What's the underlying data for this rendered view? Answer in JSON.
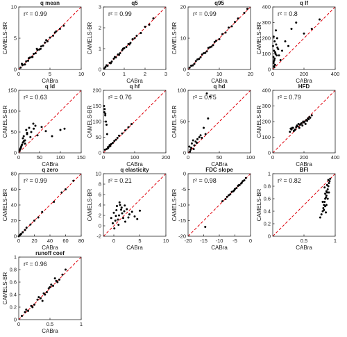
{
  "figure": {
    "background": "#ffffff"
  },
  "style": {
    "point_color": "#000000",
    "line_color": "#e0000b",
    "axis_color": "#262626"
  },
  "chart_data": [
    {
      "type": "scatter",
      "title": "q mean",
      "xlabel": "CABra",
      "ylabel": "CAMELS-BR",
      "r2": "r² = 0.99",
      "xlim": [
        0,
        10
      ],
      "ylim": [
        0,
        10
      ],
      "xticks": [
        0,
        5,
        10
      ],
      "yticks": [
        0,
        5,
        10
      ],
      "xticklabels": [
        "0",
        "5",
        "10"
      ],
      "yticklabels": [
        "0",
        "5",
        "10"
      ],
      "x": [
        0.3,
        0.6,
        0.9,
        1.2,
        1.5,
        1.8,
        2.1,
        2.4,
        2.7,
        3.0,
        3.3,
        3.6,
        3.9,
        4.2,
        4.6,
        5.0,
        5.5,
        6.0,
        6.6,
        7.2,
        0.5,
        1.0,
        1.6,
        2.2,
        2.9,
        3.5,
        4.4,
        5.8
      ],
      "y": [
        0.3,
        0.7,
        0.8,
        1.3,
        1.4,
        1.9,
        2.0,
        2.5,
        2.6,
        3.1,
        3.2,
        3.7,
        3.8,
        4.3,
        4.5,
        5.1,
        5.4,
        6.1,
        6.5,
        7.0,
        0.9,
        0.8,
        1.8,
        2.0,
        3.3,
        3.3,
        4.7,
        5.9
      ]
    },
    {
      "type": "scatter",
      "title": "q5",
      "xlabel": "CABra",
      "ylabel": "CAMELS-BR",
      "r2": "r² = 0.99",
      "xlim": [
        0,
        3
      ],
      "ylim": [
        0,
        3
      ],
      "xticks": [
        0,
        1,
        2,
        3
      ],
      "yticks": [
        0,
        1,
        2,
        3
      ],
      "xticklabels": [
        "0",
        "1",
        "2",
        "3"
      ],
      "yticklabels": [
        "0",
        "1",
        "2",
        "3"
      ],
      "x": [
        0.05,
        0.1,
        0.2,
        0.3,
        0.4,
        0.5,
        0.6,
        0.7,
        0.8,
        0.9,
        1.0,
        1.1,
        1.2,
        1.3,
        1.4,
        1.5,
        1.6,
        1.8,
        2.0,
        2.2,
        2.4,
        0.15,
        0.35,
        0.55,
        0.75,
        0.95,
        1.25
      ],
      "y": [
        0.05,
        0.12,
        0.18,
        0.32,
        0.38,
        0.52,
        0.58,
        0.72,
        0.78,
        0.92,
        1.02,
        1.08,
        1.22,
        1.28,
        1.45,
        1.5,
        1.62,
        1.75,
        2.05,
        2.15,
        2.45,
        0.2,
        0.3,
        0.6,
        0.7,
        1.0,
        1.2
      ]
    },
    {
      "type": "scatter",
      "title": "q95",
      "xlabel": "CABra",
      "ylabel": "CAMELS-BR",
      "r2": "r² = 0.99",
      "xlim": [
        0,
        20
      ],
      "ylim": [
        0,
        20
      ],
      "xticks": [
        0,
        10,
        20
      ],
      "yticks": [
        0,
        10,
        20
      ],
      "xticklabels": [
        "0",
        "10",
        "20"
      ],
      "yticklabels": [
        "0",
        "10",
        "20"
      ],
      "x": [
        0.5,
        1,
        2,
        3,
        4,
        5,
        6,
        7,
        8,
        9,
        10,
        11,
        12,
        13,
        14,
        15,
        16,
        18,
        19,
        1.5,
        2.5,
        3.5,
        4.5,
        5.5,
        6.5,
        7.5,
        8.5
      ],
      "y": [
        0.6,
        1.2,
        1.8,
        3.2,
        3.9,
        5.2,
        5.8,
        7.1,
        7.8,
        9.2,
        9.7,
        11.3,
        11.8,
        13.4,
        13.8,
        15.2,
        16.3,
        18.1,
        19.4,
        1.3,
        2.7,
        3.4,
        4.8,
        5.3,
        6.9,
        7.3,
        8.8
      ]
    },
    {
      "type": "scatter",
      "title": "q lf",
      "xlabel": "CABra",
      "ylabel": "CAMELS-BR",
      "r2": "r² = 0.8",
      "xlim": [
        0,
        400
      ],
      "ylim": [
        0,
        400
      ],
      "xticks": [
        0,
        200,
        400
      ],
      "yticks": [
        0,
        100,
        200,
        300,
        400
      ],
      "xticklabels": [
        "0",
        "200",
        "400"
      ],
      "yticklabels": [
        "0",
        "100",
        "200",
        "300",
        "400"
      ],
      "x": [
        2,
        4,
        6,
        8,
        10,
        12,
        15,
        18,
        20,
        25,
        30,
        5,
        8,
        12,
        16,
        22,
        28,
        35,
        40,
        50,
        60,
        80,
        100,
        120,
        150,
        200,
        250,
        300,
        6,
        10
      ],
      "y": [
        150,
        80,
        210,
        120,
        60,
        180,
        30,
        100,
        250,
        90,
        140,
        40,
        20,
        70,
        110,
        160,
        200,
        130,
        90,
        60,
        120,
        180,
        150,
        260,
        300,
        230,
        260,
        320,
        50,
        15
      ]
    },
    {
      "type": "scatter",
      "title": "q ld",
      "xlabel": "CABra",
      "ylabel": "CAMELS-BR",
      "r2": "r² = 0.63",
      "xlim": [
        0,
        150
      ],
      "ylim": [
        0,
        150
      ],
      "xticks": [
        0,
        50,
        100,
        150
      ],
      "yticks": [
        0,
        50,
        100,
        150
      ],
      "xticklabels": [
        "0",
        "50",
        "100",
        "150"
      ],
      "yticklabels": [
        "0",
        "50",
        "100",
        "150"
      ],
      "x": [
        2,
        4,
        6,
        8,
        10,
        12,
        15,
        18,
        20,
        25,
        30,
        35,
        40,
        5,
        10,
        15,
        20,
        28,
        36,
        45,
        55,
        65,
        80,
        100,
        110,
        3,
        7,
        12
      ],
      "y": [
        5,
        10,
        15,
        20,
        25,
        40,
        30,
        55,
        45,
        60,
        50,
        70,
        65,
        12,
        35,
        22,
        48,
        38,
        58,
        42,
        62,
        52,
        40,
        55,
        58,
        8,
        18,
        28
      ]
    },
    {
      "type": "scatter",
      "title": "q hf",
      "xlabel": "CABra",
      "ylabel": "CAMELS-BR",
      "r2": "r² = 0.76",
      "xlim": [
        0,
        200
      ],
      "ylim": [
        0,
        200
      ],
      "xticks": [
        0,
        100,
        200
      ],
      "yticks": [
        0,
        50,
        100,
        150,
        200
      ],
      "xticklabels": [
        "0",
        "100",
        "200"
      ],
      "yticklabels": [
        "0",
        "50",
        "100",
        "150",
        "200"
      ],
      "x": [
        2,
        4,
        6,
        8,
        10,
        12,
        15,
        18,
        20,
        25,
        30,
        35,
        40,
        45,
        50,
        60,
        70,
        80,
        90,
        5,
        10,
        3,
        6,
        14,
        22
      ],
      "y": [
        150,
        140,
        120,
        100,
        90,
        60,
        15,
        20,
        25,
        28,
        32,
        38,
        42,
        48,
        55,
        62,
        72,
        82,
        92,
        10,
        12,
        130,
        125,
        18,
        22
      ]
    },
    {
      "type": "scatter",
      "title": "q hd",
      "xlabel": "CABra",
      "ylabel": "CAMELS-BR",
      "r2": "r² = 0.75",
      "xlim": [
        0,
        100
      ],
      "ylim": [
        0,
        100
      ],
      "xticks": [
        0,
        50,
        100
      ],
      "yticks": [
        0,
        50,
        100
      ],
      "xticklabels": [
        "0",
        "50",
        "100"
      ],
      "yticklabels": [
        "0",
        "50",
        "100"
      ],
      "x": [
        2,
        4,
        6,
        8,
        10,
        12,
        15,
        18,
        20,
        25,
        30,
        35,
        3,
        5,
        9,
        14,
        22,
        28,
        32
      ],
      "y": [
        10,
        5,
        15,
        20,
        12,
        18,
        22,
        25,
        28,
        40,
        95,
        90,
        2,
        8,
        6,
        16,
        24,
        30,
        55
      ]
    },
    {
      "type": "scatter",
      "title": "HFD",
      "xlabel": "CABra",
      "ylabel": "CAMELS-BR",
      "r2": "r² = 0.79",
      "xlim": [
        0,
        400
      ],
      "ylim": [
        0,
        400
      ],
      "xticks": [
        0,
        200,
        400
      ],
      "yticks": [
        0,
        100,
        200,
        300,
        400
      ],
      "xticklabels": [
        "0",
        "200",
        "400"
      ],
      "yticklabels": [
        "0",
        "100",
        "200",
        "300",
        "400"
      ],
      "x": [
        110,
        120,
        130,
        140,
        150,
        160,
        170,
        180,
        190,
        200,
        210,
        220,
        230,
        240,
        250,
        115,
        135,
        155,
        175,
        195,
        215,
        235,
        125,
        145,
        165,
        185,
        205,
        225
      ],
      "y": [
        135,
        150,
        160,
        145,
        165,
        170,
        160,
        185,
        175,
        195,
        185,
        205,
        215,
        225,
        240,
        155,
        140,
        175,
        180,
        200,
        210,
        230,
        160,
        150,
        185,
        190,
        200,
        220
      ]
    },
    {
      "type": "scatter",
      "title": "q zero",
      "xlabel": "CABra",
      "ylabel": "CAMELS-BR",
      "r2": "r² = 0.99",
      "xlim": [
        0,
        80
      ],
      "ylim": [
        0,
        80
      ],
      "xticks": [
        0,
        20,
        40,
        60,
        80
      ],
      "yticks": [
        0,
        20,
        40,
        60,
        80
      ],
      "xticklabels": [
        "0",
        "20",
        "40",
        "60",
        "80"
      ],
      "yticklabels": [
        "0",
        "20",
        "40",
        "60",
        "80"
      ],
      "x": [
        0,
        1,
        2,
        3,
        5,
        8,
        10,
        15,
        20,
        25,
        30,
        45,
        55,
        60,
        70
      ],
      "y": [
        0,
        1,
        2,
        3,
        5,
        8,
        11,
        15,
        20,
        24,
        31,
        44,
        56,
        60,
        71
      ]
    },
    {
      "type": "scatter",
      "title": "q elasticity",
      "xlabel": "CABra",
      "ylabel": "CAMELS-BR",
      "r2": "r² = 0.21",
      "xlim": [
        -2,
        10
      ],
      "ylim": [
        -2,
        10
      ],
      "xticks": [
        0,
        5,
        10
      ],
      "yticks": [
        -2,
        0,
        2,
        4,
        6,
        8,
        10
      ],
      "xticklabels": [
        "0",
        "5",
        "10"
      ],
      "yticklabels": [
        "-2",
        "0",
        "2",
        "4",
        "6",
        "8",
        "10"
      ],
      "x": [
        -0.5,
        0,
        0.5,
        1,
        1.5,
        2,
        2.5,
        3,
        3.5,
        4,
        -0.2,
        0.3,
        0.8,
        1.2,
        1.8,
        2.2,
        2.8,
        0.1,
        0.6,
        1.1,
        1.6,
        2.1,
        0.4,
        0.9,
        1.4,
        4.5,
        5
      ],
      "y": [
        1.5,
        2.5,
        3,
        2,
        3.5,
        2.8,
        3.2,
        2.2,
        2.7,
        1.8,
        0.5,
        1,
        1.2,
        4,
        1.5,
        0.8,
        1.6,
        -0.5,
        3.8,
        4.5,
        2.4,
        3.9,
        1.9,
        0.2,
        3.1,
        1.3,
        2.9
      ]
    },
    {
      "type": "scatter",
      "title": "FDC slope",
      "xlabel": "CABra",
      "ylabel": "CAMELS-BR",
      "r2": "r² = 0.98",
      "xlim": [
        -20,
        0
      ],
      "ylim": [
        -20,
        0
      ],
      "xticks": [
        -20,
        -15,
        -10,
        -5,
        0
      ],
      "yticks": [
        -20,
        -15,
        -10,
        -5,
        0
      ],
      "xticklabels": [
        "-20",
        "-15",
        "-10",
        "-5",
        "0"
      ],
      "yticklabels": [
        "-20",
        "-15",
        "-10",
        "-5",
        "0"
      ],
      "x": [
        -9,
        -8,
        -7,
        -6.5,
        -6,
        -5.5,
        -5,
        -4.5,
        -4,
        -3.5,
        -3,
        -2.5,
        -2,
        -1.5,
        -14.5,
        -7.5,
        -5.2,
        -3.8,
        -2.8
      ],
      "y": [
        -8.8,
        -8.1,
        -6.9,
        -6.6,
        -5.8,
        -5.6,
        -4.9,
        -4.6,
        -3.9,
        -3.6,
        -3.1,
        -2.4,
        -2.1,
        -1.4,
        -17,
        -7.4,
        -5.3,
        -3.7,
        -2.9
      ]
    },
    {
      "type": "scatter",
      "title": "BFI",
      "xlabel": "CABra",
      "ylabel": "CAMELS-BR",
      "r2": "r² = 0.82",
      "xlim": [
        0,
        1
      ],
      "ylim": [
        0,
        1
      ],
      "xticks": [
        0.5,
        1
      ],
      "yticks": [
        0,
        0.2,
        0.4,
        0.6,
        0.8,
        1
      ],
      "xticklabels": [
        "0.5",
        "1"
      ],
      "yticklabels": [
        "0",
        "0.2",
        "0.4",
        "0.6",
        "0.8",
        "1"
      ],
      "x": [
        0.76,
        0.78,
        0.8,
        0.81,
        0.82,
        0.83,
        0.84,
        0.85,
        0.86,
        0.87,
        0.88,
        0.89,
        0.9,
        0.91,
        0.92,
        0.8,
        0.82,
        0.84,
        0.86,
        0.88,
        0.9,
        0.83,
        0.85,
        0.87,
        0.89,
        0.84,
        0.86
      ],
      "y": [
        0.3,
        0.35,
        0.4,
        0.45,
        0.5,
        0.55,
        0.6,
        0.62,
        0.65,
        0.7,
        0.75,
        0.8,
        0.85,
        0.88,
        0.92,
        0.55,
        0.42,
        0.68,
        0.5,
        0.6,
        0.7,
        0.78,
        0.38,
        0.82,
        0.9,
        0.48,
        0.72
      ]
    },
    {
      "type": "scatter",
      "title": "runoff coef",
      "xlabel": "CABra",
      "ylabel": "CAMELS-BR",
      "r2": "r² = 0.96",
      "xlim": [
        0,
        1
      ],
      "ylim": [
        0,
        1
      ],
      "xticks": [
        0,
        0.5,
        1
      ],
      "yticks": [
        0,
        0.2,
        0.4,
        0.6,
        0.8,
        1
      ],
      "xticklabels": [
        "0",
        "0.5",
        "1"
      ],
      "yticklabels": [
        "0",
        "0.2",
        "0.4",
        "0.6",
        "0.8",
        "1"
      ],
      "x": [
        0.05,
        0.1,
        0.15,
        0.2,
        0.25,
        0.3,
        0.35,
        0.4,
        0.45,
        0.5,
        0.55,
        0.6,
        0.65,
        0.7,
        0.75,
        0.12,
        0.22,
        0.32,
        0.42,
        0.52,
        0.62,
        0.38,
        0.48,
        0.58
      ],
      "y": [
        0.06,
        0.12,
        0.14,
        0.22,
        0.24,
        0.32,
        0.34,
        0.42,
        0.44,
        0.52,
        0.54,
        0.62,
        0.64,
        0.72,
        0.8,
        0.16,
        0.2,
        0.36,
        0.4,
        0.56,
        0.6,
        0.3,
        0.5,
        0.66
      ]
    }
  ]
}
